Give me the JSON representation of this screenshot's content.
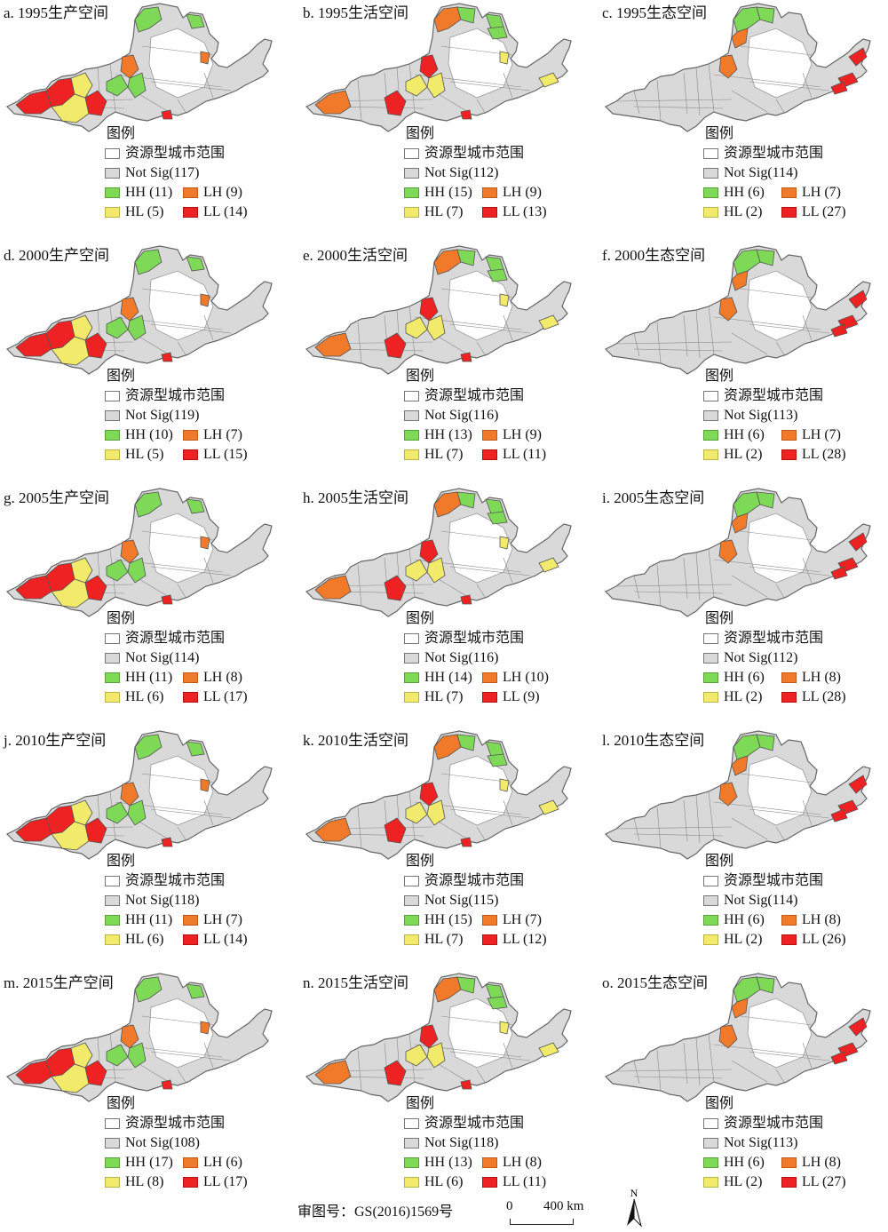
{
  "panels": [
    {
      "title": "a. 1995生产空间",
      "ns": "Not Sig(117)",
      "hh": "HH (11)",
      "lh": "LH (9)",
      "hl": "HL (5)",
      "ll": "LL (14)",
      "kind": "prod"
    },
    {
      "title": "b. 1995生活空间",
      "ns": "Not Sig(112)",
      "hh": "HH (15)",
      "lh": "LH (9)",
      "hl": "HL (7)",
      "ll": "LL (13)",
      "kind": "live"
    },
    {
      "title": "c. 1995生态空间",
      "ns": "Not Sig(114)",
      "hh": "HH (6)",
      "lh": "LH (7)",
      "hl": "HL (2)",
      "ll": "LL (27)",
      "kind": "eco"
    },
    {
      "title": "d. 2000生产空间",
      "ns": "Not Sig(119)",
      "hh": "HH (10)",
      "lh": "LH (7)",
      "hl": "HL (5)",
      "ll": "LL (15)",
      "kind": "prod"
    },
    {
      "title": "e. 2000生活空间",
      "ns": "Not Sig(116)",
      "hh": "HH (13)",
      "lh": "LH (9)",
      "hl": "HL (7)",
      "ll": "LL (11)",
      "kind": "live"
    },
    {
      "title": "f. 2000生态空间",
      "ns": "Not Sig(113)",
      "hh": "HH (6)",
      "lh": "LH (7)",
      "hl": "HL (2)",
      "ll": "LL (28)",
      "kind": "eco"
    },
    {
      "title": "g. 2005生产空间",
      "ns": "Not Sig(114)",
      "hh": "HH (11)",
      "lh": "LH (8)",
      "hl": "HL (6)",
      "ll": "LL (17)",
      "kind": "prod"
    },
    {
      "title": "h. 2005生活空间",
      "ns": "Not Sig(116)",
      "hh": "HH (14)",
      "lh": "LH (10)",
      "hl": "HL (7)",
      "ll": "LL (9)",
      "kind": "live"
    },
    {
      "title": "i. 2005生态空间",
      "ns": "Not Sig(112)",
      "hh": "HH (6)",
      "lh": "LH (8)",
      "hl": "HL (2)",
      "ll": "LL (28)",
      "kind": "eco"
    },
    {
      "title": "j. 2010生产空间",
      "ns": "Not Sig(118)",
      "hh": "HH (11)",
      "lh": "LH (7)",
      "hl": "HL (6)",
      "ll": "LL (14)",
      "kind": "prod"
    },
    {
      "title": "k. 2010生活空间",
      "ns": "Not Sig(115)",
      "hh": "HH (15)",
      "lh": "LH (7)",
      "hl": "HL (7)",
      "ll": "LL (12)",
      "kind": "live"
    },
    {
      "title": "l. 2010生态空间",
      "ns": "Not Sig(114)",
      "hh": "HH (6)",
      "lh": "LH (8)",
      "hl": "HL (2)",
      "ll": "LL (26)",
      "kind": "eco"
    },
    {
      "title": "m. 2015生产空间",
      "ns": "Not Sig(108)",
      "hh": "HH (17)",
      "lh": "LH (6)",
      "hl": "HL (8)",
      "ll": "LL (17)",
      "kind": "prod"
    },
    {
      "title": "n. 2015生活空间",
      "ns": "Not Sig(118)",
      "hh": "HH (13)",
      "lh": "LH (8)",
      "hl": "HL (6)",
      "ll": "LL (11)",
      "kind": "live"
    },
    {
      "title": "o. 2015生态空间",
      "ns": "Not Sig(113)",
      "hh": "HH (6)",
      "lh": "LH (8)",
      "hl": "HL (2)",
      "ll": "LL (27)",
      "kind": "eco"
    }
  ],
  "legend": {
    "title": "图例",
    "range": "资源型城市范围"
  },
  "footer": {
    "review": "审图号：GS(2016)1569号",
    "scale_zero": "0",
    "scale_dist": "400 km",
    "north": "N"
  },
  "colors": {
    "hh": "#7ed957",
    "lh": "#f07a2a",
    "hl": "#f1ea6a",
    "ll": "#ee2222",
    "not_sig": "#d9d9d9",
    "range": "#ffffff"
  }
}
